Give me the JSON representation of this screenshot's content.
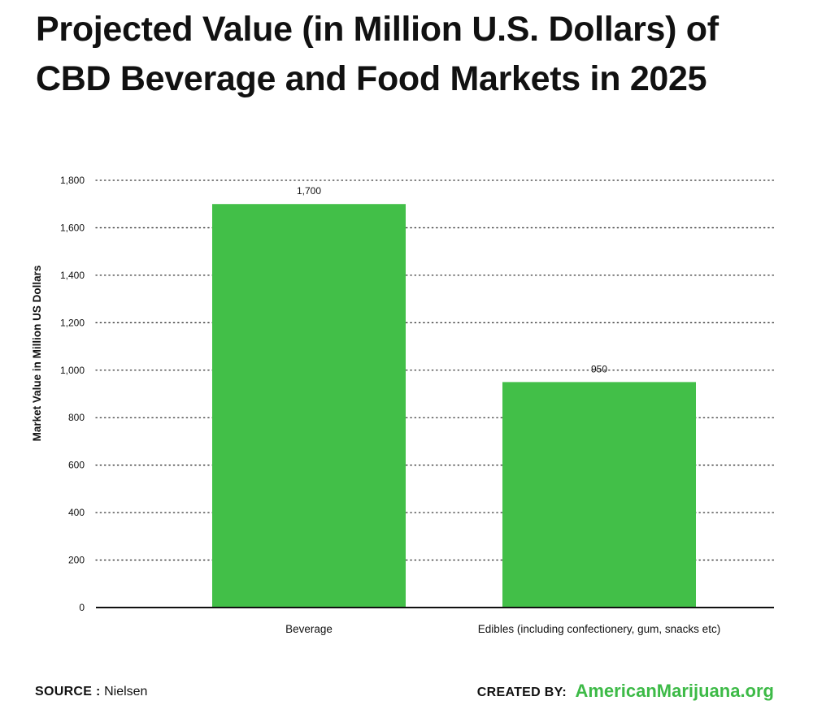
{
  "title_line1": "Projected Value (in Million U.S. Dollars) of",
  "title_line2": "CBD Beverage and Food Markets in 2025",
  "footer": {
    "source_label": "SOURCE :",
    "source_value": "Nielsen",
    "created_label": "CREATED BY:",
    "created_value": "AmericanMarijuana.org"
  },
  "colors": {
    "bar": "#42bf48",
    "brand": "#3dba47",
    "text": "#111111",
    "grid": "#333333"
  },
  "chart_data": {
    "type": "bar",
    "title": "Projected Value (in Million U.S. Dollars) of CBD Beverage and Food Markets in 2025",
    "xlabel": "",
    "ylabel": "Market Value in Million US Dollars",
    "categories": [
      "Beverage",
      "Edibles (including confectionery, gum, snacks etc)"
    ],
    "values": [
      1700,
      950
    ],
    "data_labels": [
      "1,700",
      "950"
    ],
    "ylim": [
      0,
      1800
    ],
    "yticks": [
      0,
      200,
      400,
      600,
      800,
      1000,
      1200,
      1400,
      1600,
      1800
    ],
    "ytick_labels": [
      "0",
      "200",
      "400",
      "600",
      "800",
      "1,000",
      "1,200",
      "1,400",
      "1,600",
      "1,800"
    ],
    "grid": true,
    "grid_style": "dotted",
    "legend": "none"
  }
}
